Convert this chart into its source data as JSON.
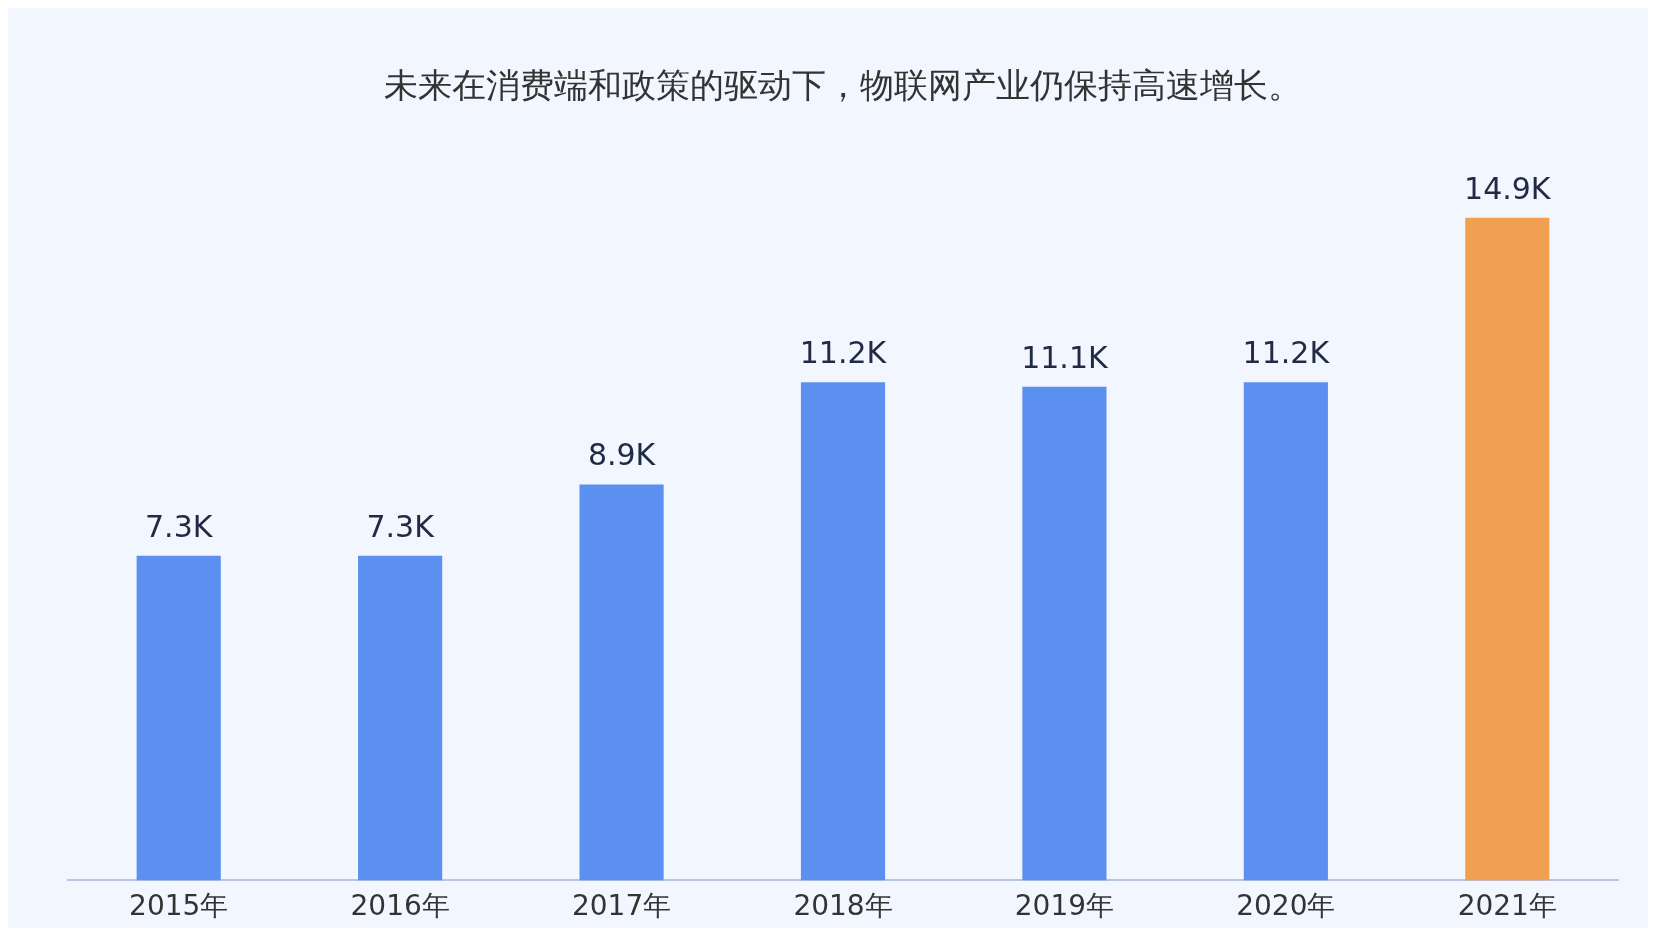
{
  "chart_data": {
    "type": "bar",
    "title": "未来在消费端和政策的驱动下，物联网产业仍保持高速增长。",
    "categories": [
      "2015年",
      "2016年",
      "2017年",
      "2018年",
      "2019年",
      "2020年",
      "2021年"
    ],
    "values": [
      7.3,
      7.3,
      8.9,
      11.2,
      11.1,
      11.2,
      14.9
    ],
    "value_labels": [
      "7.3K",
      "7.3K",
      "8.9K",
      "11.2K",
      "11.1K",
      "11.2K",
      "14.9K"
    ],
    "colors": [
      "#5b8ff0",
      "#5b8ff0",
      "#5b8ff0",
      "#5b8ff0",
      "#5b8ff0",
      "#5b8ff0",
      "#f0a050"
    ],
    "tick_labels": "x"
  }
}
